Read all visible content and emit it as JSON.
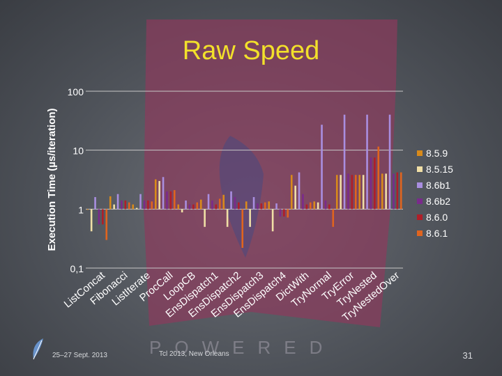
{
  "slide": {
    "title": "Raw Speed",
    "footer_date": "25–27 Sept. 2013",
    "footer_event": "Tcl 2013, New Orleans",
    "page_number": "31",
    "watermark": "POWERED",
    "icons": [
      "feather-icon",
      "tcl-logo-watermark"
    ]
  },
  "colors": {
    "title": "#f2e02b",
    "axis_text": "#ffffff",
    "gridline": "#c8c8c8",
    "banner": "#8b3a5c",
    "series": [
      "#d98a1a",
      "#f0dfa6",
      "#a98ee0",
      "#7a2a8c",
      "#b01e28",
      "#e0641e"
    ]
  },
  "chart_data": {
    "type": "bar",
    "scale": "log",
    "title": "Raw Speed",
    "xlabel": "",
    "ylabel": "Execution Time (µs/iteration)",
    "ylim": [
      0.1,
      100
    ],
    "yticks": [
      100,
      10,
      1,
      0.1
    ],
    "ytick_labels": [
      "100",
      "10",
      "1",
      "0,1"
    ],
    "grid": true,
    "legend": "right",
    "categories": [
      "ListConcat",
      "Fibonacci",
      "ListIterate",
      "ProcCall",
      "LoopCB",
      "EnsDispatch1",
      "EnsDispatch2",
      "EnsDispatch3",
      "EnsDispatch4",
      "DictWith",
      "TryNormal",
      "TryError",
      "TryNested",
      "TryNestedOver"
    ],
    "series": [
      {
        "name": "8.5.9",
        "values": [
          1.0,
          1.65,
          1.2,
          3.2,
          1.2,
          1.45,
          1.75,
          1.35,
          1.35,
          3.8,
          1.35,
          3.8,
          3.8,
          4.0
        ]
      },
      {
        "name": "8.5.15",
        "values": [
          0.42,
          1.2,
          1.05,
          3.0,
          0.88,
          0.5,
          0.5,
          0.5,
          0.42,
          2.5,
          1.3,
          3.8,
          3.8,
          4.0
        ]
      },
      {
        "name": "8.6b1",
        "values": [
          1.6,
          1.8,
          1.8,
          3.5,
          1.4,
          1.8,
          2.0,
          1.6,
          1.25,
          4.2,
          27,
          40,
          40,
          40
        ]
      },
      {
        "name": "8.6b2",
        "values": [
          0.55,
          1.4,
          1.4,
          2.0,
          1.2,
          1.4,
          1.6,
          1.25,
          0.75,
          1.8,
          1.4,
          4.0,
          7.5,
          4.0
        ]
      },
      {
        "name": "8.6.0",
        "values": [
          0.55,
          1.4,
          1.4,
          2.0,
          1.2,
          1.2,
          1.3,
          1.25,
          0.75,
          1.2,
          1.2,
          3.8,
          7.5,
          4.2
        ]
      },
      {
        "name": "8.6.1",
        "values": [
          0.3,
          1.3,
          1.35,
          2.1,
          1.3,
          1.5,
          0.22,
          1.3,
          0.72,
          1.3,
          0.5,
          3.8,
          11.5,
          4.2
        ]
      }
    ]
  }
}
